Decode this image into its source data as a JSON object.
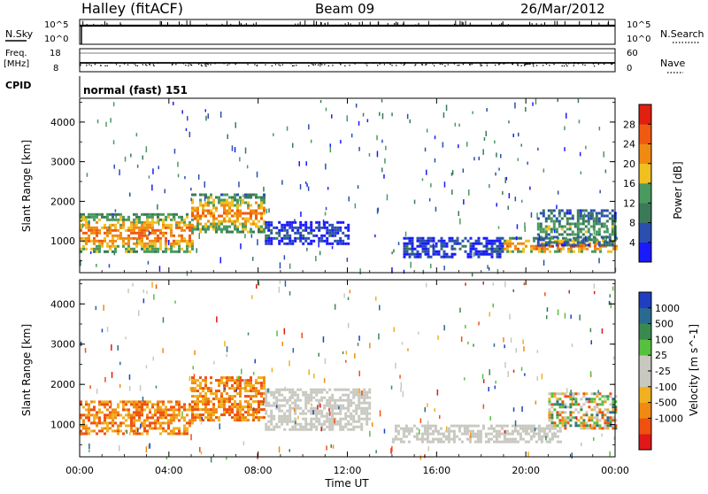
{
  "header": {
    "station": "Halley (fitACF)",
    "beam": "Beam 09",
    "date": "26/Mar/2012"
  },
  "strip_nsky": {
    "label": "N.Sky",
    "right_label": "N.Search",
    "left_ticks": [
      "10^5",
      "10^0"
    ],
    "right_ticks": [
      "10^5",
      "10^0"
    ]
  },
  "strip_freq": {
    "label_line1": "Freq.",
    "label_line2": "[MHz]",
    "right_label": "Nave",
    "left_ticks": [
      "18",
      "8"
    ],
    "right_ticks": [
      "60",
      "0"
    ]
  },
  "cpid": {
    "label": "CPID",
    "value": "normal (fast) 151"
  },
  "colors": {
    "power_scale": [
      "#1a1aff",
      "#2a4fb0",
      "#3a7a5a",
      "#4a9a60",
      "#f0c020",
      "#f08a10",
      "#f05a10",
      "#e02010"
    ],
    "velocity_scale": [
      "#e01818",
      "#f05010",
      "#f08a10",
      "#f0b020",
      "#c8c8c0",
      "#c8c8c0",
      "#58c040",
      "#3a8a50",
      "#2a6a90",
      "#1f3fc0"
    ],
    "ground_scatter": "#c8c8c0"
  },
  "chart_data": [
    {
      "type": "heatmap",
      "panel": "power",
      "ylabel": "Slant Range [km]",
      "yticks": [
        "1000",
        "2000",
        "3000",
        "4000"
      ],
      "ylim": [
        200,
        4600
      ],
      "xlim": [
        0,
        24
      ],
      "colorbar": {
        "label": "Power [dB]",
        "ticks": [
          "4",
          "8",
          "12",
          "16",
          "20",
          "24",
          "28"
        ],
        "range": [
          0,
          32
        ]
      },
      "echo_regions": [
        {
          "t_start": 0.0,
          "t_end": 5.0,
          "range_min": 700,
          "range_max": 1700,
          "value": 26
        },
        {
          "t_start": 5.0,
          "t_end": 8.3,
          "range_min": 1200,
          "range_max": 2200,
          "value": 24
        },
        {
          "t_start": 8.3,
          "t_end": 12.0,
          "range_min": 900,
          "range_max": 1500,
          "value": 6
        },
        {
          "t_start": 14.5,
          "t_end": 19.0,
          "range_min": 600,
          "range_max": 1100,
          "value": 6
        },
        {
          "t_start": 19.0,
          "t_end": 24.0,
          "range_min": 700,
          "range_max": 1100,
          "value": 26
        },
        {
          "t_start": 20.5,
          "t_end": 24.0,
          "range_min": 900,
          "range_max": 1800,
          "value": 14
        }
      ]
    },
    {
      "type": "heatmap",
      "panel": "velocity",
      "ylabel": "Slant Range [km]",
      "yticks": [
        "1000",
        "2000",
        "3000",
        "4000"
      ],
      "ylim": [
        200,
        4600
      ],
      "xlim": [
        0,
        24
      ],
      "xlabel": "Time UT",
      "xticks": [
        "00:00",
        "04:00",
        "08:00",
        "12:00",
        "16:00",
        "20:00",
        "00:00"
      ],
      "colorbar": {
        "label": "Velocity [m s^-1]",
        "ticks": [
          "1000",
          "500",
          "100",
          "25",
          "-25",
          "-100",
          "-500",
          "-1000"
        ]
      },
      "echo_regions": [
        {
          "t_start": 0.0,
          "t_end": 5.0,
          "range_min": 800,
          "range_max": 1600,
          "category": "negative"
        },
        {
          "t_start": 5.0,
          "t_end": 8.3,
          "range_min": 1100,
          "range_max": 2200,
          "category": "negative"
        },
        {
          "t_start": 8.3,
          "t_end": 13.0,
          "range_min": 900,
          "range_max": 1900,
          "category": "ground"
        },
        {
          "t_start": 14.0,
          "t_end": 21.5,
          "range_min": 600,
          "range_max": 1000,
          "category": "ground"
        },
        {
          "t_start": 21.0,
          "t_end": 24.0,
          "range_min": 900,
          "range_max": 1800,
          "category": "mixed"
        }
      ]
    }
  ]
}
